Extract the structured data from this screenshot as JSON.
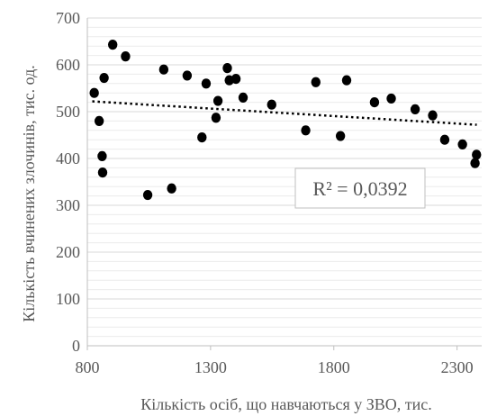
{
  "chart_data": {
    "type": "scatter",
    "xlabel": "Кількість осіб, що навчаються у ЗВО, тис.",
    "ylabel": "Кількість вчинених злочинів, тис. од.",
    "xlim": [
      800,
      2400
    ],
    "ylim": [
      0,
      700
    ],
    "x_ticks": [
      800,
      1300,
      1800,
      2300
    ],
    "y_ticks": [
      0,
      100,
      200,
      300,
      400,
      500,
      600,
      700
    ],
    "x_tick_labels": [
      "800",
      "1300",
      "1800",
      "2300"
    ],
    "y_tick_labels": [
      "0",
      "100",
      "200",
      "300",
      "400",
      "500",
      "600",
      "700"
    ],
    "grid": "horizontal",
    "marker_color": "#000000",
    "series": [
      {
        "points": [
          {
            "x": 828,
            "y": 540
          },
          {
            "x": 848,
            "y": 480
          },
          {
            "x": 860,
            "y": 405
          },
          {
            "x": 862,
            "y": 370
          },
          {
            "x": 868,
            "y": 572
          },
          {
            "x": 903,
            "y": 643
          },
          {
            "x": 955,
            "y": 618
          },
          {
            "x": 1045,
            "y": 322
          },
          {
            "x": 1110,
            "y": 590
          },
          {
            "x": 1142,
            "y": 336
          },
          {
            "x": 1205,
            "y": 577
          },
          {
            "x": 1265,
            "y": 445
          },
          {
            "x": 1282,
            "y": 560
          },
          {
            "x": 1322,
            "y": 487
          },
          {
            "x": 1330,
            "y": 523
          },
          {
            "x": 1368,
            "y": 593
          },
          {
            "x": 1376,
            "y": 567
          },
          {
            "x": 1403,
            "y": 570
          },
          {
            "x": 1432,
            "y": 530
          },
          {
            "x": 1548,
            "y": 515
          },
          {
            "x": 1686,
            "y": 460
          },
          {
            "x": 1727,
            "y": 563
          },
          {
            "x": 1827,
            "y": 448
          },
          {
            "x": 1852,
            "y": 567
          },
          {
            "x": 1965,
            "y": 520
          },
          {
            "x": 2033,
            "y": 528
          },
          {
            "x": 2130,
            "y": 505
          },
          {
            "x": 2201,
            "y": 492
          },
          {
            "x": 2250,
            "y": 440
          },
          {
            "x": 2322,
            "y": 430
          },
          {
            "x": 2373,
            "y": 390
          },
          {
            "x": 2379,
            "y": 408
          }
        ]
      }
    ],
    "trendline": {
      "style": "dotted",
      "x": [
        820,
        2380
      ],
      "y": [
        522,
        472
      ]
    },
    "annotation": "R² = 0,0392"
  }
}
